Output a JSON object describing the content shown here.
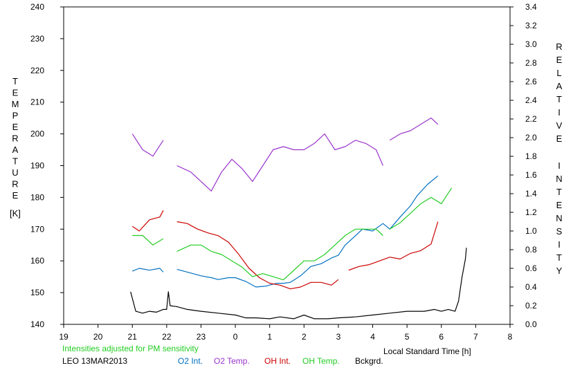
{
  "chart_data": {
    "type": "line",
    "xlabel": "Local Standard Time [h]",
    "ylabel_left": "TEMPERATURE",
    "ylabel_left_unit": "[K]",
    "ylabel_right": "RELATIVE INTENSITY",
    "note": "Intensities adjusted for PM sensitivity",
    "station_date": "LEO 13MAR2013",
    "x_ticks": [
      "19",
      "20",
      "21",
      "22",
      "23",
      "0",
      "1",
      "2",
      "3",
      "4",
      "5",
      "6",
      "7",
      "8"
    ],
    "x_range": [
      19,
      32
    ],
    "y_left_range": [
      140,
      240
    ],
    "y_left_ticks": [
      "140",
      "150",
      "160",
      "170",
      "180",
      "190",
      "200",
      "210",
      "220",
      "230",
      "240"
    ],
    "y_right_range": [
      0.0,
      3.4
    ],
    "y_right_ticks": [
      "0.0",
      "0.2",
      "0.4",
      "0.6",
      "0.8",
      "1.0",
      "1.2",
      "1.4",
      "1.6",
      "1.8",
      "2.0",
      "2.2",
      "2.4",
      "2.6",
      "2.8",
      "3.0",
      "3.2",
      "3.4"
    ],
    "grid": false,
    "series": [
      {
        "name": "O2 Int.",
        "color": "#0070c0",
        "axis": "right",
        "x": [
          21.0,
          21.2,
          21.5,
          21.8,
          21.9,
          null,
          22.3,
          22.6,
          23.0,
          23.3,
          23.5,
          23.8,
          24.0,
          24.3,
          24.6,
          24.9,
          25.2,
          25.4,
          25.6,
          25.9,
          26.2,
          26.5,
          26.8,
          27.0,
          27.2,
          27.5,
          27.7,
          28.0,
          28.3,
          28.5,
          28.8,
          29.1,
          29.3,
          29.6,
          29.9
        ],
        "y": [
          0.57,
          0.6,
          0.58,
          0.6,
          0.56,
          null,
          0.59,
          0.56,
          0.52,
          0.5,
          0.48,
          0.5,
          0.5,
          0.46,
          0.4,
          0.41,
          0.44,
          0.44,
          0.45,
          0.52,
          0.62,
          0.65,
          0.71,
          0.74,
          0.85,
          0.95,
          1.02,
          1.0,
          1.08,
          1.02,
          1.15,
          1.27,
          1.38,
          1.5,
          1.59
        ]
      },
      {
        "name": "O2 Temp.",
        "color": "#9933cc",
        "axis": "left",
        "x": [
          21.0,
          21.3,
          21.6,
          21.9,
          null,
          22.3,
          22.7,
          23.0,
          23.3,
          23.6,
          23.9,
          24.2,
          24.5,
          24.8,
          25.1,
          25.4,
          25.7,
          26.0,
          26.3,
          26.6,
          26.9,
          27.2,
          27.5,
          27.8,
          28.1,
          28.3,
          null,
          28.5,
          28.8,
          29.1,
          29.4,
          29.7,
          29.9
        ],
        "y": [
          200,
          195,
          193,
          198,
          null,
          190,
          188,
          185,
          182,
          188,
          192,
          189,
          185,
          190,
          195,
          196,
          195,
          195,
          197,
          200,
          195,
          196,
          198,
          197,
          195,
          190,
          null,
          198,
          200,
          201,
          203,
          205,
          203
        ]
      },
      {
        "name": "OH Int.",
        "color": "#cc0000",
        "axis": "right",
        "x": [
          21.0,
          21.2,
          21.5,
          21.8,
          21.9,
          null,
          22.3,
          22.6,
          22.9,
          23.2,
          23.5,
          23.8,
          24.1,
          24.4,
          24.7,
          25.0,
          25.3,
          25.6,
          25.9,
          26.2,
          26.5,
          26.8,
          27.0,
          null,
          27.3,
          27.6,
          27.9,
          28.2,
          28.5,
          28.8,
          29.1,
          29.4,
          29.7,
          29.9
        ],
        "y": [
          1.05,
          1.0,
          1.12,
          1.15,
          1.22,
          null,
          1.1,
          1.08,
          1.02,
          0.98,
          0.95,
          0.88,
          0.75,
          0.6,
          0.5,
          0.44,
          0.42,
          0.38,
          0.4,
          0.45,
          0.45,
          0.42,
          0.48,
          null,
          0.58,
          0.62,
          0.64,
          0.68,
          0.72,
          0.7,
          0.76,
          0.79,
          0.86,
          1.1
        ]
      },
      {
        "name": "OH Temp.",
        "color": "#22cc22",
        "axis": "left",
        "x": [
          21.0,
          21.3,
          21.6,
          21.9,
          null,
          22.3,
          22.7,
          23.0,
          23.3,
          23.6,
          23.9,
          24.2,
          24.5,
          24.8,
          25.1,
          25.4,
          25.7,
          26.0,
          26.3,
          26.6,
          26.9,
          27.2,
          27.5,
          27.8,
          28.1,
          28.3,
          null,
          28.5,
          28.8,
          29.1,
          29.4,
          29.7,
          30.0,
          30.3
        ],
        "y": [
          168,
          168,
          165,
          167,
          null,
          163,
          165,
          165,
          163,
          162,
          160,
          158,
          155,
          156,
          155,
          154,
          157,
          160,
          160,
          162,
          165,
          168,
          170,
          170,
          170,
          168,
          null,
          170,
          172,
          175,
          178,
          180,
          178,
          183
        ]
      },
      {
        "name": "Bckgrd.",
        "color": "#000000",
        "axis": "right",
        "x": [
          20.95,
          21.1,
          21.3,
          21.5,
          21.7,
          21.9,
          22.0,
          22.05,
          22.1,
          22.3,
          22.6,
          23.0,
          23.5,
          24.0,
          24.3,
          24.6,
          25.0,
          25.3,
          25.7,
          26.0,
          26.3,
          26.7,
          27.0,
          27.5,
          28.0,
          28.5,
          29.0,
          29.5,
          29.8,
          30.0,
          30.2,
          30.4,
          30.5,
          30.6,
          30.7,
          30.73
        ],
        "y": [
          0.35,
          0.14,
          0.12,
          0.14,
          0.13,
          0.16,
          0.16,
          0.35,
          0.2,
          0.19,
          0.16,
          0.14,
          0.12,
          0.1,
          0.07,
          0.07,
          0.06,
          0.08,
          0.06,
          0.1,
          0.06,
          0.06,
          0.07,
          0.08,
          0.1,
          0.12,
          0.14,
          0.14,
          0.16,
          0.14,
          0.16,
          0.14,
          0.25,
          0.5,
          0.7,
          0.82
        ]
      }
    ]
  }
}
